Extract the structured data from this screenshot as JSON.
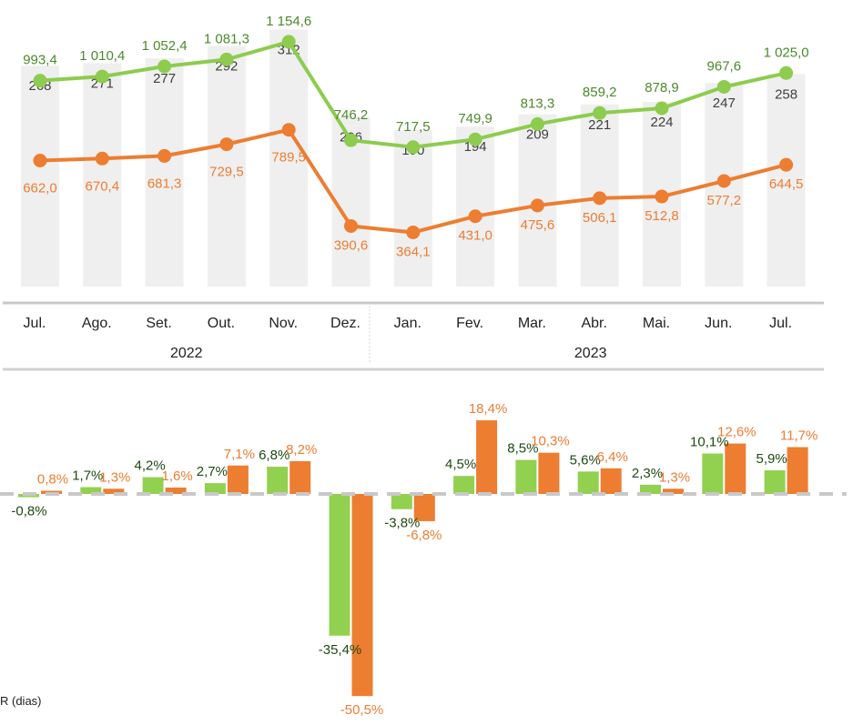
{
  "chart_data": [
    {
      "type": "bar",
      "categories": [
        "Jul.",
        "Ago.",
        "Set.",
        "Out.",
        "Nov.",
        "Dez.",
        "Jan.",
        "Fev.",
        "Mar.",
        "Abr.",
        "Mai.",
        "Jun.",
        "Jul."
      ],
      "category_groups": [
        {
          "label": "2022",
          "from": 0,
          "to": 5
        },
        {
          "label": "2023",
          "from": 6,
          "to": 12
        }
      ],
      "bars": {
        "values": [
          268,
          271,
          277,
          292,
          312,
          206,
          190,
          194,
          209,
          221,
          224,
          247,
          258
        ],
        "labels": [
          "268",
          "271",
          "277",
          "292",
          "312",
          "206",
          "190",
          "194",
          "209",
          "221",
          "224",
          "247",
          "258"
        ],
        "color": "#efefef",
        "label_color": "#404040"
      },
      "series": [
        {
          "type": "line",
          "values": [
            993.4,
            1010.4,
            1052.4,
            1081.3,
            1154.6,
            746.2,
            717.5,
            749.9,
            813.3,
            859.2,
            878.9,
            967.6,
            1025.0
          ],
          "labels": [
            "993,4",
            "1 010,4",
            "1 052,4",
            "1 081,3",
            "1 154,6",
            "746,2",
            "717,5",
            "749,9",
            "813,3",
            "859,2",
            "878,9",
            "967,6",
            "1 025,0"
          ],
          "color": "#8dcc4e",
          "label_color": "#4b8a2a"
        },
        {
          "type": "line",
          "values": [
            662.0,
            670.4,
            681.3,
            729.5,
            789.5,
            390.6,
            364.1,
            431.0,
            475.6,
            506.1,
            512.8,
            577.2,
            644.5
          ],
          "labels": [
            "662,0",
            "670,4",
            "681,3",
            "729,5",
            "789,5",
            "390,6",
            "364,1",
            "431,0",
            "475,6",
            "506,1",
            "512,8",
            "577,2",
            "644,5"
          ],
          "color": "#ed7d31",
          "label_color": "#ed7d31"
        }
      ]
    },
    {
      "type": "bar",
      "categories": [
        "Jul.",
        "Ago.",
        "Set.",
        "Out.",
        "Nov.",
        "Dez.",
        "Jan.",
        "Fev.",
        "Mar.",
        "Abr.",
        "Mai.",
        "Jun.",
        "Jul."
      ],
      "series": [
        {
          "values": [
            -0.8,
            1.7,
            4.2,
            2.7,
            6.8,
            -35.4,
            -3.8,
            4.5,
            8.5,
            5.6,
            2.3,
            10.1,
            5.9
          ],
          "labels": [
            "-0,8%",
            "1,7%",
            "4,2%",
            "2,7%",
            "6,8%",
            "-35,4%",
            "-3,8%",
            "4,5%",
            "8,5%",
            "5,6%",
            "2,3%",
            "10,1%",
            "5,9%"
          ],
          "color": "#92d050",
          "label_color": "#1e4a12"
        },
        {
          "values": [
            0.8,
            1.3,
            1.6,
            7.1,
            8.2,
            -50.5,
            -6.8,
            18.4,
            10.3,
            6.4,
            1.3,
            12.6,
            11.7
          ],
          "labels": [
            "0,8%",
            "1,3%",
            "1,6%",
            "7,1%",
            "8,2%",
            "-50,5%",
            "-6,8%",
            "18,4%",
            "10,3%",
            "6,4%",
            "1,3%",
            "12,6%",
            "11,7%"
          ],
          "color": "#ed7d31",
          "label_color": "#ed7d31"
        }
      ],
      "zero_line_color": "#c8c8c8"
    }
  ],
  "footnote": "R (dias)"
}
